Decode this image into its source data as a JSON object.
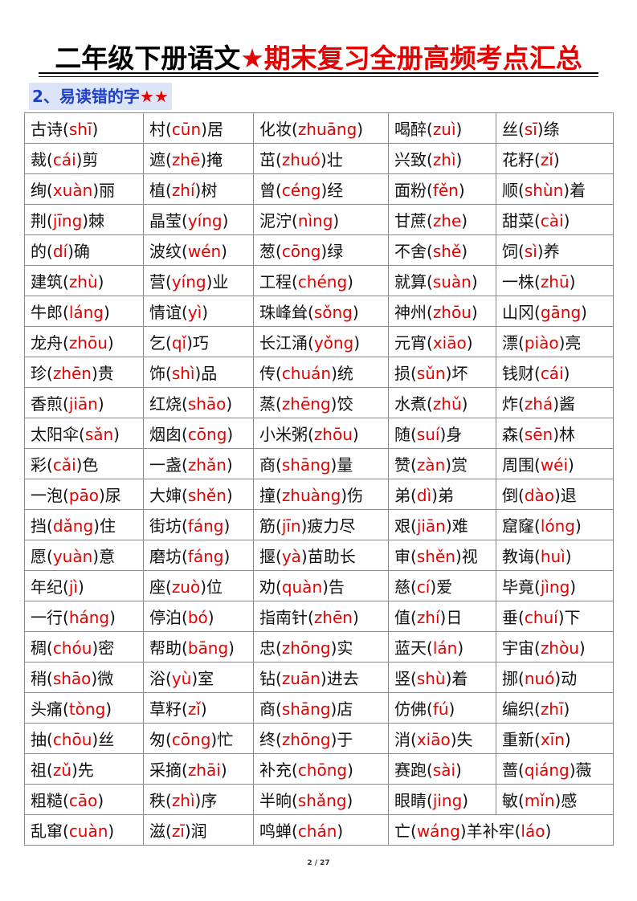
{
  "header": {
    "title": [
      "二年级下册语文",
      "★期末复习全册高频考点汇总"
    ]
  },
  "section": {
    "heading": [
      "2、易读错的字",
      "★★"
    ]
  },
  "table": {
    "rows": [
      [
        [
          "古诗(",
          "shī",
          ")"
        ],
        [
          "村(",
          "cūn",
          ")居"
        ],
        [
          "化妆(",
          "zhuāng",
          ")"
        ],
        [
          "喝醉(",
          "zuì",
          ")"
        ],
        [
          "丝(",
          "sī",
          ")绦"
        ]
      ],
      [
        [
          "裁(",
          "cái",
          ")剪"
        ],
        [
          "遮(",
          "zhē",
          ")掩"
        ],
        [
          "茁(",
          "zhuó",
          ")壮"
        ],
        [
          "兴致(",
          "zhì",
          ")"
        ],
        [
          "花籽(",
          "zǐ",
          ")"
        ]
      ],
      [
        [
          "绚(",
          "xuàn",
          ")丽"
        ],
        [
          "植(",
          "zhí",
          ")树"
        ],
        [
          "曾(",
          "céng",
          ")经"
        ],
        [
          "面粉(",
          "fěn",
          ")"
        ],
        [
          "顺(",
          "shùn",
          ")着"
        ]
      ],
      [
        [
          "荆(",
          "jīng",
          ")棘"
        ],
        [
          "晶莹(",
          "yíng",
          ")"
        ],
        [
          "泥泞(",
          "nìng",
          ")"
        ],
        [
          "甘蔗(",
          "zhe",
          ")"
        ],
        [
          "甜菜(",
          "cài",
          ")"
        ]
      ],
      [
        [
          "的(",
          "dí",
          ")确"
        ],
        [
          "波纹(",
          "wén",
          ")"
        ],
        [
          "葱(",
          "cōng",
          ")绿"
        ],
        [
          "不舍(",
          "shě",
          ")"
        ],
        [
          "饲(",
          "sì",
          ")养"
        ]
      ],
      [
        [
          "建筑(",
          "zhù",
          ")"
        ],
        [
          "营(",
          "yíng",
          ")业"
        ],
        [
          "工程(",
          "chéng",
          ")"
        ],
        [
          "就算(",
          "suàn",
          ")"
        ],
        [
          "一株(",
          "zhū",
          ")"
        ]
      ],
      [
        [
          "牛郎(",
          "láng",
          ")"
        ],
        [
          "情谊(",
          "yì",
          ")"
        ],
        [
          "珠峰耸(",
          "sǒng",
          ")"
        ],
        [
          "神州(",
          "zhōu",
          ")"
        ],
        [
          "山冈(",
          "gāng",
          ")"
        ]
      ],
      [
        [
          "龙舟(",
          "zhōu",
          ")"
        ],
        [
          "乞(",
          "qǐ",
          ")巧"
        ],
        [
          "长江涌(",
          "yǒng",
          ")"
        ],
        [
          "元宵(",
          "xiāo",
          ")"
        ],
        [
          "漂(",
          "piào",
          ")亮"
        ]
      ],
      [
        [
          "珍(",
          "zhēn",
          ")贵"
        ],
        [
          "饰(",
          "shì",
          ")品"
        ],
        [
          "传(",
          "chuán",
          ")统"
        ],
        [
          "损(",
          "sǔn",
          ")坏"
        ],
        [
          "钱财(",
          "cái",
          ")"
        ]
      ],
      [
        [
          "香煎(",
          "jiān",
          ")"
        ],
        [
          "红烧(",
          "shāo",
          ")"
        ],
        [
          "蒸(",
          "zhēng",
          ")饺"
        ],
        [
          "水煮(",
          "zhǔ",
          ")"
        ],
        [
          "炸(",
          "zhá",
          ")酱"
        ]
      ],
      [
        [
          "太阳伞(",
          "sǎn",
          ")"
        ],
        [
          "烟囱(",
          "cōng",
          ")"
        ],
        [
          "小米粥(",
          "zhōu",
          ")"
        ],
        [
          "随(",
          "suí",
          ")身"
        ],
        [
          "森(",
          "sēn",
          ")林"
        ]
      ],
      [
        [
          "彩(",
          "cǎi",
          ")色"
        ],
        [
          "一盏(",
          "zhǎn",
          ")"
        ],
        [
          "商(",
          "shāng",
          ")量"
        ],
        [
          "赞(",
          "zàn",
          ")赏"
        ],
        [
          "周围(",
          "wéi",
          ")"
        ]
      ],
      [
        [
          "一泡(",
          "pāo",
          ")尿"
        ],
        [
          "大婶(",
          "shěn",
          ")"
        ],
        [
          "撞(",
          "zhuàng",
          ")伤"
        ],
        [
          "弟(",
          "dì",
          ")弟"
        ],
        [
          "倒(",
          "dào",
          ")退"
        ]
      ],
      [
        [
          "挡(",
          "dǎng",
          ")住"
        ],
        [
          "街坊(",
          "fáng",
          ")"
        ],
        [
          "筋(",
          "jīn",
          ")疲力尽"
        ],
        [
          "艰(",
          "jiān",
          ")难"
        ],
        [
          "窟窿(",
          "lóng",
          ")"
        ]
      ],
      [
        [
          "愿(",
          "yuàn",
          ")意"
        ],
        [
          "磨坊(",
          "fáng",
          ")"
        ],
        [
          "揠(",
          "yà",
          ")苗助长"
        ],
        [
          "审(",
          "shěn",
          ")视"
        ],
        [
          "教诲(",
          "huì",
          ")"
        ]
      ],
      [
        [
          "年纪(",
          "jì",
          ")"
        ],
        [
          "座(",
          "zuò",
          ")位"
        ],
        [
          "劝(",
          "quàn",
          ")告"
        ],
        [
          "慈(",
          "cí",
          ")爱"
        ],
        [
          "毕竟(",
          "jìng",
          ")"
        ]
      ],
      [
        [
          "一行(",
          "háng",
          ")"
        ],
        [
          "停泊(",
          "bó",
          ")"
        ],
        [
          "指南针(",
          "zhēn",
          ")"
        ],
        [
          "值(",
          "zhí",
          ")日"
        ],
        [
          "垂(",
          "chuí",
          ")下"
        ]
      ],
      [
        [
          "稠(",
          "chóu",
          ")密"
        ],
        [
          "帮助(",
          "bāng",
          ")"
        ],
        [
          "忠(",
          "zhōng",
          ")实"
        ],
        [
          "蓝天(",
          "lán",
          ")"
        ],
        [
          "宇宙(",
          "zhòu",
          ")"
        ]
      ],
      [
        [
          "稍(",
          "shāo",
          ")微"
        ],
        [
          "浴(",
          "yù",
          ")室"
        ],
        [
          "钻(",
          "zuān",
          ")进去"
        ],
        [
          "竖(",
          "shù",
          ")着"
        ],
        [
          "挪(",
          "nuó",
          ")动"
        ]
      ],
      [
        [
          "头痛(",
          "tòng",
          ")"
        ],
        [
          "草籽(",
          "zǐ",
          ")"
        ],
        [
          "商(",
          "shāng",
          ")店"
        ],
        [
          "仿佛(",
          "fú",
          ")"
        ],
        [
          "编织(",
          "zhī",
          ")"
        ]
      ],
      [
        [
          "抽(",
          "chōu",
          ")丝"
        ],
        [
          "匆(",
          "cōng",
          ")忙"
        ],
        [
          "终(",
          "zhōng",
          ")于"
        ],
        [
          "消(",
          "xiāo",
          ")失"
        ],
        [
          "重新(",
          "xīn",
          ")"
        ]
      ],
      [
        [
          "祖(",
          "zǔ",
          ")先"
        ],
        [
          "采摘(",
          "zhāi",
          ")"
        ],
        [
          "补充(",
          "chōng",
          ")"
        ],
        [
          "赛跑(",
          "sài",
          ")"
        ],
        [
          "蔷(",
          "qiáng",
          ")薇"
        ]
      ],
      [
        [
          "粗糙(",
          "cāo",
          ")"
        ],
        [
          "秩(",
          "zhì",
          ")序"
        ],
        [
          "半晌(",
          "shǎng",
          ")"
        ],
        [
          "眼睛(",
          "jing",
          ")"
        ],
        [
          "敏(",
          "mǐn",
          ")感"
        ]
      ],
      [
        [
          "乱窜(",
          "cuàn",
          ")"
        ],
        [
          "滋(",
          "zī",
          ")润"
        ],
        [
          "鸣蝉(",
          "chán",
          ")"
        ],
        [
          "亡(",
          "wáng",
          ")羊补牢(",
          "láo",
          ")"
        ]
      ]
    ]
  },
  "footer": {
    "page": "2 / 27"
  }
}
